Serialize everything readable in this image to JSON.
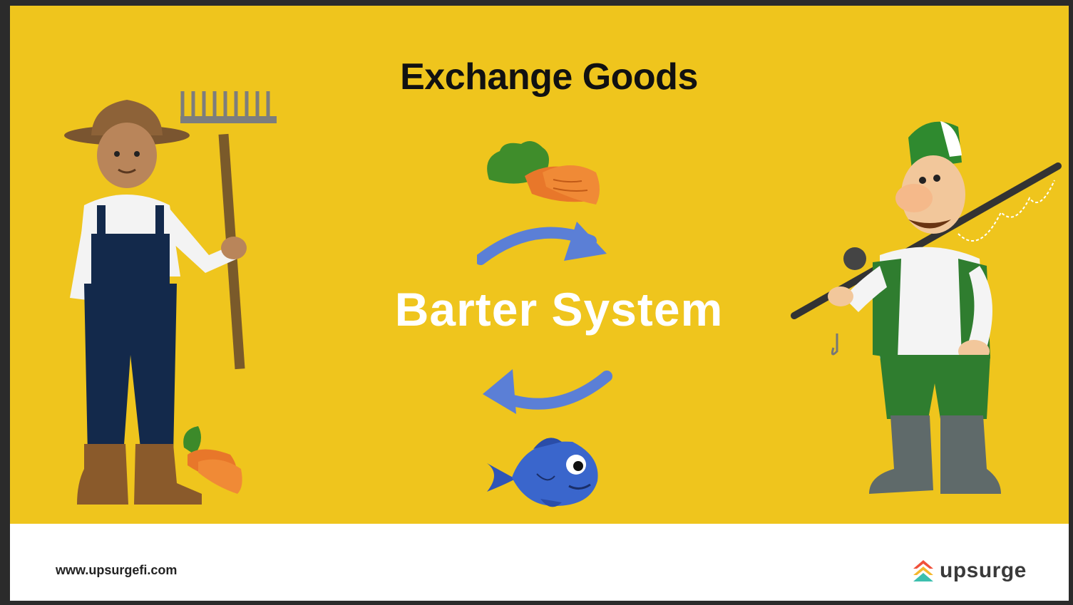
{
  "slide": {
    "title": "Exchange Goods",
    "center_label": "Barter System"
  },
  "footer": {
    "website": "www.upsurgefi.com",
    "brand": "upsurge"
  },
  "icons": [
    "farmer-illustration",
    "fisherman-illustration",
    "carrots-icon",
    "fish-icon",
    "exchange-arrow-right-icon",
    "exchange-arrow-left-icon",
    "upsurge-logo-icon"
  ],
  "colors": {
    "background": "#efc51d",
    "arrow": "#5b7fd6",
    "footer": "#ffffff"
  }
}
